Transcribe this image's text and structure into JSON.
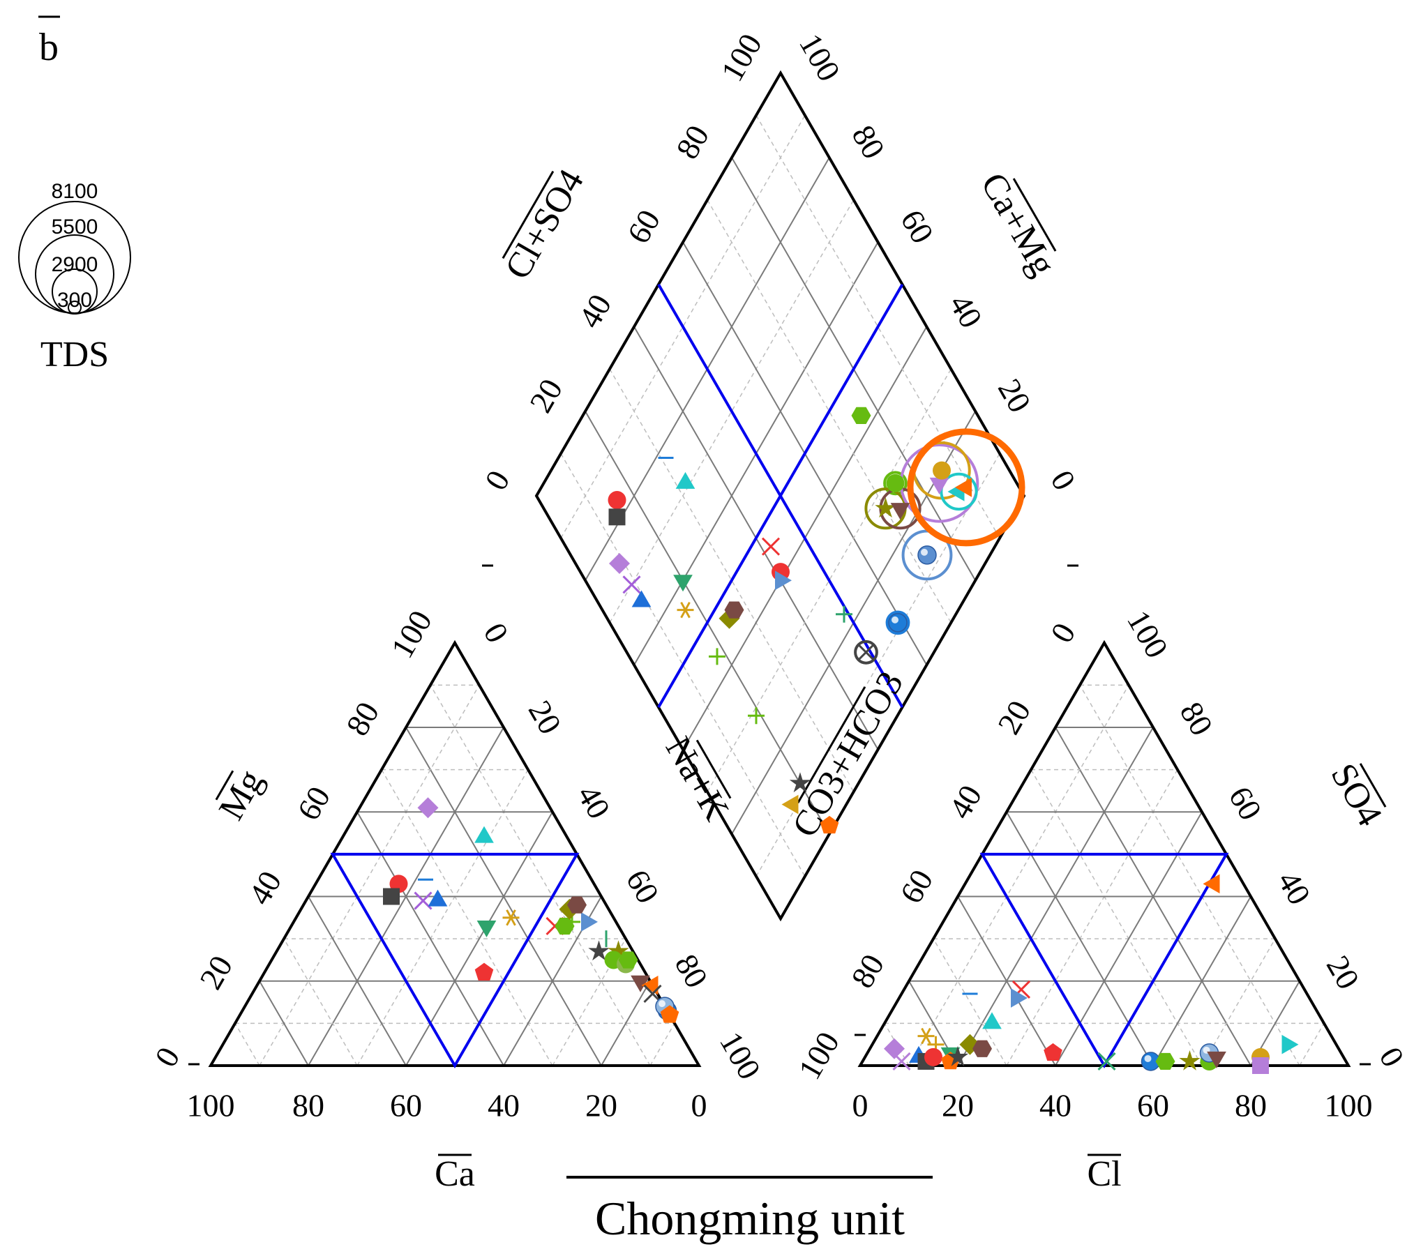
{
  "panel_label": "b",
  "title": "Chongming unit",
  "tds_legend": {
    "title": "TDS",
    "values": [
      "8100",
      "5500",
      "2900",
      "300"
    ]
  },
  "colors": {
    "grid_solid": "#7a7a7a",
    "grid_dashed": "#bdbdbd",
    "outline": "#000000",
    "subdivision": "#0000ee"
  },
  "chart_data": {
    "type": "scatter",
    "title": "Chongming unit",
    "diagram": "piper",
    "grid": true,
    "tick_labels": [
      "0",
      "20",
      "40",
      "60",
      "80",
      "100"
    ],
    "cation_triangle": {
      "axes": {
        "bottom": "Ca",
        "left": "Mg",
        "right": "Na+K"
      },
      "points": [
        {
          "shape": "diamond",
          "color": "#b57ed9",
          "ca": 25,
          "mg": 61,
          "nak": 14
        },
        {
          "shape": "triangle-up",
          "color": "#20c8c8",
          "ca": 17,
          "mg": 54,
          "nak": 29
        },
        {
          "shape": "circle",
          "color": "#ee3333",
          "ca": 40,
          "mg": 43,
          "nak": 17
        },
        {
          "shape": "dash",
          "color": "#1e7cd8",
          "ca": 34,
          "mg": 44,
          "nak": 22
        },
        {
          "shape": "square",
          "color": "#444444",
          "ca": 43,
          "mg": 40,
          "nak": 17
        },
        {
          "shape": "x",
          "color": "#a35ed9",
          "ca": 37,
          "mg": 39,
          "nak": 24
        },
        {
          "shape": "triangle-up",
          "color": "#1e6fd8",
          "ca": 34,
          "mg": 39,
          "nak": 27
        },
        {
          "shape": "triangle-down",
          "color": "#2ea36c",
          "ca": 27,
          "mg": 33,
          "nak": 40
        },
        {
          "shape": "asterisk",
          "color": "#d4a017",
          "ca": 21,
          "mg": 35,
          "nak": 44
        },
        {
          "shape": "pentagon",
          "color": "#ee3333",
          "ca": 33,
          "mg": 22,
          "nak": 45
        },
        {
          "shape": "x",
          "color": "#ee3333",
          "ca": 13,
          "mg": 33,
          "nak": 54
        },
        {
          "shape": "hexagon",
          "color": "#66bb11",
          "ca": 11,
          "mg": 33,
          "nak": 56
        },
        {
          "shape": "plus",
          "color": "#66bb11",
          "ca": 9,
          "mg": 34,
          "nak": 57
        },
        {
          "shape": "triangle-right",
          "color": "#5b8fd0",
          "ca": 6,
          "mg": 34,
          "nak": 60
        },
        {
          "shape": "diamond",
          "color": "#8a8a00",
          "ca": 8,
          "mg": 37,
          "nak": 55
        },
        {
          "shape": "hexagon",
          "color": "#7a4a44",
          "ca": 6,
          "mg": 38,
          "nak": 56
        },
        {
          "shape": "vline",
          "color": "#2ea36c",
          "ca": 4,
          "mg": 30,
          "nak": 66
        },
        {
          "shape": "star",
          "color": "#444444",
          "ca": 7,
          "mg": 27,
          "nak": 66
        },
        {
          "shape": "star",
          "color": "#8a8a00",
          "ca": 3,
          "mg": 27,
          "nak": 70
        },
        {
          "shape": "circle",
          "color": "#66bb11",
          "ca": 5,
          "mg": 25,
          "nak": 70
        },
        {
          "shape": "circle",
          "color": "#8ab84a",
          "ca": 3,
          "mg": 24,
          "nak": 73
        },
        {
          "shape": "hexagon",
          "color": "#66bb11",
          "ca": 2,
          "mg": 25,
          "nak": 73
        },
        {
          "shape": "triangle-down",
          "color": "#7a4a44",
          "ca": 2,
          "mg": 20,
          "nak": 78
        },
        {
          "shape": "triangle-left",
          "color": "#ff6a00",
          "ca": 0,
          "mg": 19,
          "nak": 81
        },
        {
          "shape": "x",
          "color": "#444444",
          "ca": 1,
          "mg": 17,
          "nak": 82
        },
        {
          "shape": "sphere",
          "color": "#1e7cd8",
          "ca": 0,
          "mg": 13,
          "nak": 87
        },
        {
          "shape": "sphere",
          "color": "#8fb6e0",
          "ca": 0,
          "mg": 14,
          "nak": 86
        },
        {
          "shape": "pentagon",
          "color": "#ff6a00",
          "ca": 0,
          "mg": 12,
          "nak": 88
        }
      ]
    },
    "anion_triangle": {
      "axes": {
        "bottom": "Cl",
        "left": "CO3+HCO3",
        "right": "SO4"
      },
      "points": [
        {
          "shape": "triangle-left",
          "color": "#ff6a00",
          "cl": 51,
          "so4": 43,
          "hco3": 6
        },
        {
          "shape": "dash",
          "color": "#1e7cd8",
          "cl": 14,
          "so4": 17,
          "hco3": 69
        },
        {
          "shape": "x",
          "color": "#ee3333",
          "cl": 24,
          "so4": 18,
          "hco3": 58
        },
        {
          "shape": "triangle-right",
          "color": "#5b8fd0",
          "cl": 24,
          "so4": 16,
          "hco3": 60
        },
        {
          "shape": "triangle-up",
          "color": "#20c8c8",
          "cl": 22,
          "so4": 10,
          "hco3": 68
        },
        {
          "shape": "asterisk",
          "color": "#d4a017",
          "cl": 10,
          "so4": 7,
          "hco3": 83
        },
        {
          "shape": "plus",
          "color": "#d4a017",
          "cl": 13,
          "so4": 5,
          "hco3": 82
        },
        {
          "shape": "diamond",
          "color": "#b57ed9",
          "cl": 5,
          "so4": 4,
          "hco3": 91
        },
        {
          "shape": "x",
          "color": "#b57ed9",
          "cl": 8,
          "so4": 1,
          "hco3": 91
        },
        {
          "shape": "triangle-up",
          "color": "#1e6fd8",
          "cl": 11,
          "so4": 2,
          "hco3": 87
        },
        {
          "shape": "square",
          "color": "#444444",
          "cl": 13,
          "so4": 1,
          "hco3": 86
        },
        {
          "shape": "circle",
          "color": "#ee3333",
          "cl": 14,
          "so4": 2,
          "hco3": 84
        },
        {
          "shape": "triangle-down",
          "color": "#2ea36c",
          "cl": 17,
          "so4": 3,
          "hco3": 80
        },
        {
          "shape": "pentagon",
          "color": "#ff6a00",
          "cl": 18,
          "so4": 1,
          "hco3": 81
        },
        {
          "shape": "star",
          "color": "#444444",
          "cl": 19,
          "so4": 2,
          "hco3": 79
        },
        {
          "shape": "diamond",
          "color": "#8a8a00",
          "cl": 20,
          "so4": 5,
          "hco3": 75
        },
        {
          "shape": "hexagon",
          "color": "#7a4a44",
          "cl": 23,
          "so4": 4,
          "hco3": 73
        },
        {
          "shape": "pentagon",
          "color": "#ee3333",
          "cl": 38,
          "so4": 3,
          "hco3": 59
        },
        {
          "shape": "x",
          "color": "#2ea36c",
          "cl": 50,
          "so4": 1,
          "hco3": 49
        },
        {
          "shape": "sphere",
          "color": "#1e7cd8",
          "cl": 59,
          "so4": 1,
          "hco3": 40
        },
        {
          "shape": "hexagon",
          "color": "#66bb11",
          "cl": 62,
          "so4": 1,
          "hco3": 37
        },
        {
          "shape": "star",
          "color": "#8a8a00",
          "cl": 67,
          "so4": 1,
          "hco3": 32
        },
        {
          "shape": "circle",
          "color": "#66bb11",
          "cl": 71,
          "so4": 1,
          "hco3": 28
        },
        {
          "shape": "sphere",
          "color": "#8fb6e0",
          "cl": 70,
          "so4": 3,
          "hco3": 27
        },
        {
          "shape": "triangle-down",
          "color": "#7a4a44",
          "cl": 72,
          "so4": 2,
          "hco3": 26
        },
        {
          "shape": "circle",
          "color": "#d4a017",
          "cl": 81,
          "so4": 2,
          "hco3": 17
        },
        {
          "shape": "square",
          "color": "#b57ed9",
          "cl": 82,
          "so4": 0,
          "hco3": 18
        },
        {
          "shape": "triangle-right",
          "color": "#20c8c8",
          "cl": 85,
          "so4": 5,
          "hco3": 10
        }
      ]
    },
    "diamond": {
      "axes": {
        "upper_left": "Cl+SO4",
        "upper_right": "Ca+Mg",
        "lower_left": "Na+K",
        "lower_right": "CO3+HCO3"
      },
      "points": [
        {
          "shape": "diamond",
          "color": "#b57ed9",
          "so4cl": 9,
          "camg": 75,
          "tds": 0
        },
        {
          "shape": "x",
          "color": "#a35ed9",
          "so4cl": 9,
          "camg": 70,
          "tds": 0
        },
        {
          "shape": "triangle-up",
          "color": "#1e6fd8",
          "so4cl": 9,
          "camg": 66,
          "tds": 0
        },
        {
          "shape": "circle",
          "color": "#ee3333",
          "so4cl": 16,
          "camg": 83,
          "tds": 0
        },
        {
          "shape": "square",
          "color": "#444444",
          "so4cl": 14,
          "camg": 81,
          "tds": 0
        },
        {
          "shape": "dash",
          "color": "#1e7cd8",
          "so4cl": 31,
          "camg": 78,
          "tds": 0
        },
        {
          "shape": "triangle-up",
          "color": "#20c8c8",
          "so4cl": 32,
          "camg": 71,
          "tds": 0
        },
        {
          "shape": "triangle-down",
          "color": "#2ea36c",
          "so4cl": 20,
          "camg": 60,
          "tds": 0
        },
        {
          "shape": "asterisk",
          "color": "#d4a017",
          "so4cl": 17,
          "camg": 56,
          "tds": 0
        },
        {
          "shape": "diamond",
          "color": "#8a8a00",
          "so4cl": 25,
          "camg": 46,
          "tds": 0
        },
        {
          "shape": "hexagon",
          "color": "#7a4a44",
          "so4cl": 27,
          "camg": 46,
          "tds": 0
        },
        {
          "shape": "x",
          "color": "#ee3333",
          "so4cl": 42,
          "camg": 46,
          "tds": 0
        },
        {
          "shape": "circle",
          "color": "#ee3333",
          "so4cl": 41,
          "camg": 41,
          "tds": 0
        },
        {
          "shape": "triangle-right",
          "color": "#5b8fd0",
          "so4cl": 40,
          "camg": 40,
          "tds": 0
        },
        {
          "shape": "plus",
          "color": "#66bb11",
          "so4cl": 18,
          "camg": 44,
          "tds": 0
        },
        {
          "shape": "plus",
          "color": "#66bb11",
          "so4cl": 19,
          "camg": 29,
          "tds": 0
        },
        {
          "shape": "hexagon",
          "color": "#66bb11",
          "so4cl": 76,
          "camg": 43,
          "tds": 0
        },
        {
          "shape": "plus",
          "color": "#2ea36c",
          "so4cl": 49,
          "camg": 23,
          "tds": 0
        },
        {
          "shape": "x",
          "color": "#444444",
          "so4cl": 49,
          "camg": 14,
          "tds": 300
        },
        {
          "shape": "star",
          "color": "#444444",
          "so4cl": 20,
          "camg": 12,
          "tds": 0
        },
        {
          "shape": "triangle-left",
          "color": "#d4a017",
          "so4cl": 16,
          "camg": 11,
          "tds": 0
        },
        {
          "shape": "pentagon",
          "color": "#ff6a00",
          "so4cl": 21,
          "camg": 1,
          "tds": 0
        },
        {
          "shape": "sphere",
          "color": "#1e7cd8",
          "so4cl": 59,
          "camg": 11,
          "tds": 300
        },
        {
          "shape": "sphere",
          "color": "#5b8fd0",
          "so4cl": 73,
          "camg": 13,
          "tds": 1500
        },
        {
          "shape": "circle",
          "color": "#66bb11",
          "so4cl": 75,
          "camg": 28,
          "tds": 300
        },
        {
          "shape": "star",
          "color": "#8a8a00",
          "so4cl": 70,
          "camg": 27,
          "tds": 1000
        },
        {
          "shape": "triangle-down",
          "color": "#7a4a44",
          "so4cl": 73,
          "camg": 24,
          "tds": 1000
        },
        {
          "shape": "triangle-down",
          "color": "#b57ed9",
          "so4cl": 84,
          "camg": 19,
          "tds": 3800
        },
        {
          "shape": "circle",
          "color": "#d4a017",
          "so4cl": 86,
          "camg": 20,
          "tds": 2000
        },
        {
          "shape": "triangle-left",
          "color": "#20c8c8",
          "so4cl": 87,
          "camg": 14,
          "tds": 800
        },
        {
          "shape": "triangle-left",
          "color": "#ff6a00",
          "so4cl": 89,
          "camg": 13,
          "tds": 8100
        }
      ]
    }
  }
}
